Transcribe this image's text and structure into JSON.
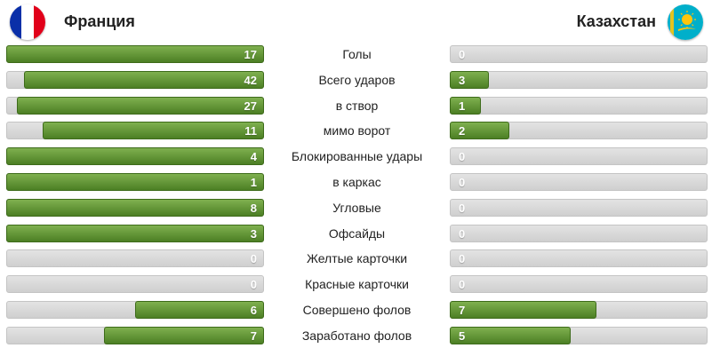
{
  "header": {
    "home": {
      "name": "Франция",
      "flag_icon": "france-flag-icon"
    },
    "away": {
      "name": "Казахстан",
      "flag_icon": "kazakhstan-flag-icon"
    }
  },
  "colors": {
    "bar_fill": "#5e9136",
    "bar_track": "#d9d9d9",
    "kz_blue": "#00afca",
    "kz_gold": "#fec50c"
  },
  "stats": [
    {
      "label": "Голы",
      "home": "17",
      "away": "0",
      "home_fill": 1.0,
      "away_fill": 0.0
    },
    {
      "label": "Всего ударов",
      "home": "42",
      "away": "3",
      "home_fill": 0.93,
      "away_fill": 0.15
    },
    {
      "label": "в створ",
      "home": "27",
      "away": "1",
      "home_fill": 0.96,
      "away_fill": 0.12
    },
    {
      "label": "мимо ворот",
      "home": "11",
      "away": "2",
      "home_fill": 0.86,
      "away_fill": 0.23
    },
    {
      "label": "Блокированные удары",
      "home": "4",
      "away": "0",
      "home_fill": 1.0,
      "away_fill": 0.0
    },
    {
      "label": "в каркас",
      "home": "1",
      "away": "0",
      "home_fill": 1.0,
      "away_fill": 0.0
    },
    {
      "label": "Угловые",
      "home": "8",
      "away": "0",
      "home_fill": 1.0,
      "away_fill": 0.0
    },
    {
      "label": "Офсайды",
      "home": "3",
      "away": "0",
      "home_fill": 1.0,
      "away_fill": 0.0
    },
    {
      "label": "Желтые карточки",
      "home": "0",
      "away": "0",
      "home_fill": 0.0,
      "away_fill": 0.0
    },
    {
      "label": "Красные карточки",
      "home": "0",
      "away": "0",
      "home_fill": 0.0,
      "away_fill": 0.0
    },
    {
      "label": "Совершено фолов",
      "home": "6",
      "away": "7",
      "home_fill": 0.5,
      "away_fill": 0.57
    },
    {
      "label": "Заработано фолов",
      "home": "7",
      "away": "5",
      "home_fill": 0.62,
      "away_fill": 0.47
    }
  ]
}
